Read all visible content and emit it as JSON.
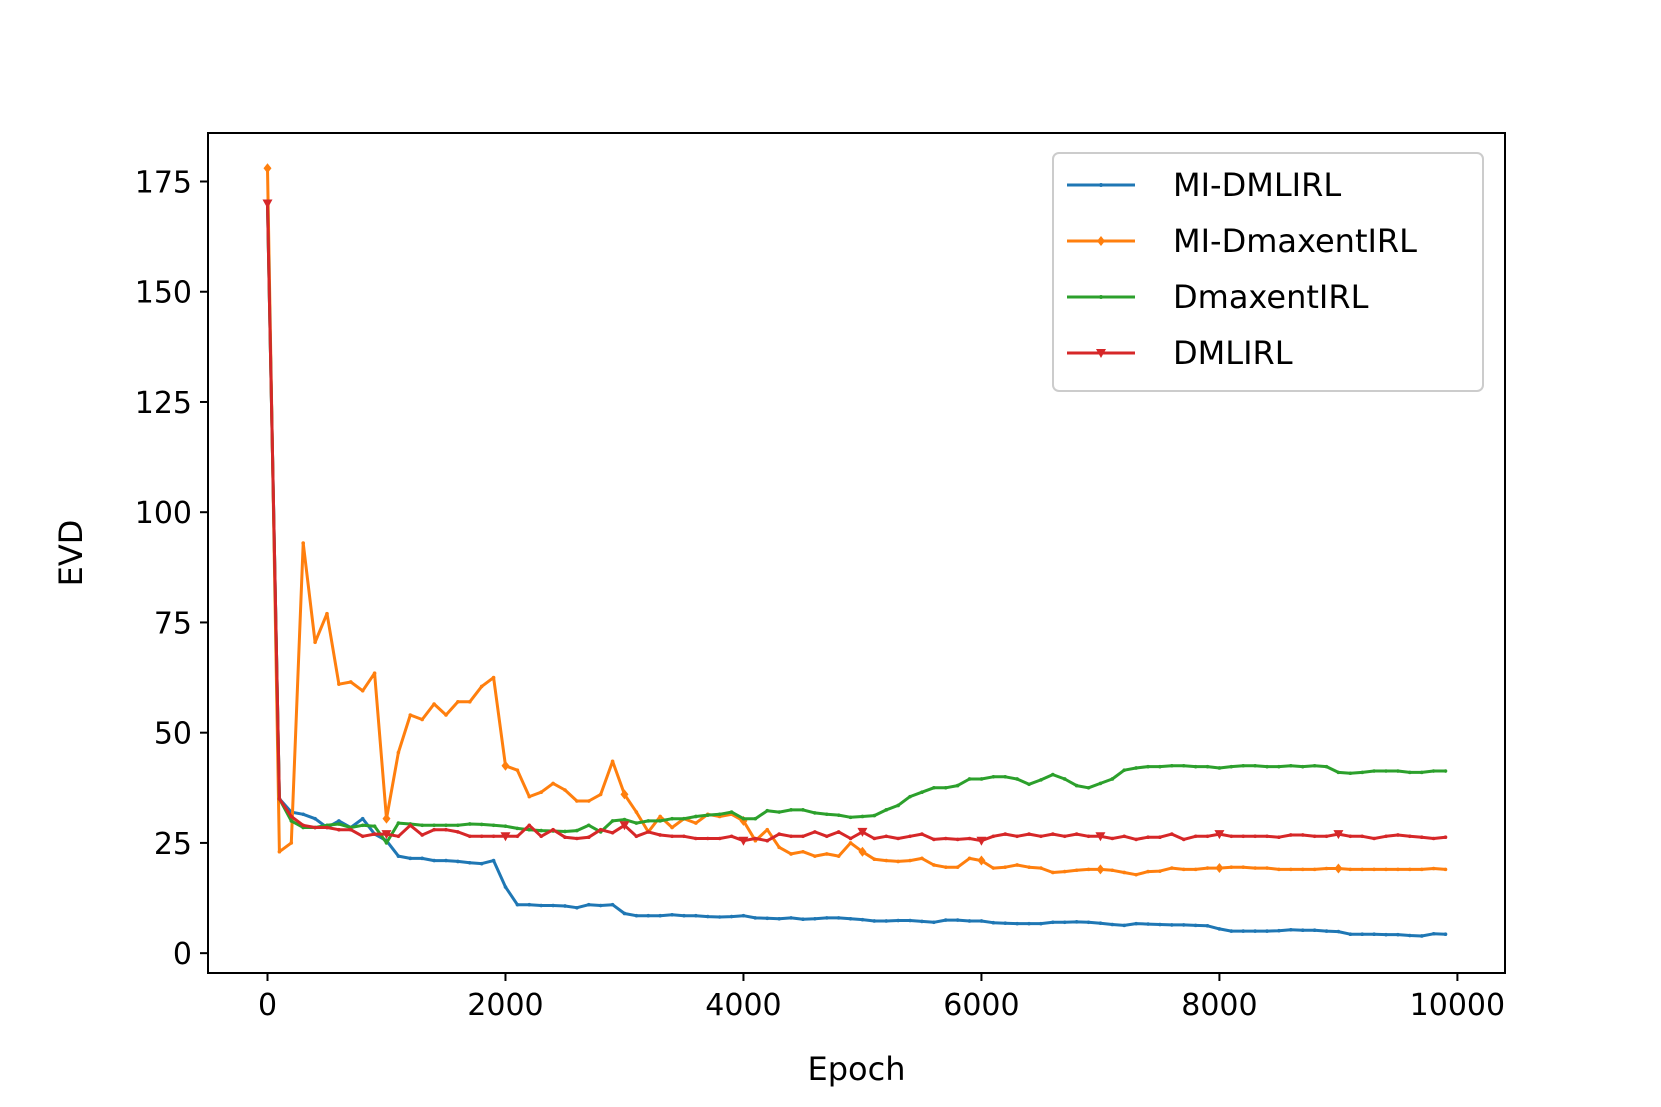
{
  "chart_data": {
    "type": "line",
    "title": "",
    "xlabel": "Epoch",
    "ylabel": "EVD",
    "xlim": [
      -500,
      10400
    ],
    "ylim": [
      -4.5,
      186
    ],
    "xticks": [
      0,
      2000,
      4000,
      6000,
      8000,
      10000
    ],
    "yticks": [
      0,
      25,
      50,
      75,
      100,
      125,
      150,
      175
    ],
    "legend_position": "upper-right",
    "grid": false,
    "x": [
      0,
      100,
      200,
      300,
      400,
      500,
      600,
      700,
      800,
      900,
      1000,
      1100,
      1200,
      1300,
      1400,
      1500,
      1600,
      1700,
      1800,
      1900,
      2000,
      2100,
      2200,
      2300,
      2400,
      2500,
      2600,
      2700,
      2800,
      2900,
      3000,
      3100,
      3200,
      3300,
      3400,
      3500,
      3600,
      3700,
      3800,
      3900,
      4000,
      4100,
      4200,
      4300,
      4400,
      4500,
      4600,
      4700,
      4800,
      4900,
      5000,
      5100,
      5200,
      5300,
      5400,
      5500,
      5600,
      5700,
      5800,
      5900,
      6000,
      6100,
      6200,
      6300,
      6400,
      6500,
      6600,
      6700,
      6800,
      6900,
      7000,
      7100,
      7200,
      7300,
      7400,
      7500,
      7600,
      7700,
      7800,
      7900,
      8000,
      8100,
      8200,
      8300,
      8400,
      8500,
      8600,
      8700,
      8800,
      8900,
      9000,
      9100,
      9200,
      9300,
      9400,
      9500,
      9600,
      9700,
      9800,
      9900
    ],
    "series": [
      {
        "name": "MI-DMLIRL",
        "color": "#1f77b4",
        "marker": "point",
        "values": [
          170,
          35,
          32,
          31.5,
          30.5,
          28.5,
          30,
          28.5,
          30.5,
          27,
          25.5,
          22,
          21.5,
          21.5,
          21,
          21,
          20.8,
          20.5,
          20.3,
          21,
          15,
          11,
          11,
          10.8,
          10.8,
          10.7,
          10.3,
          11,
          10.8,
          11,
          9,
          8.5,
          8.5,
          8.5,
          8.7,
          8.5,
          8.5,
          8.3,
          8.2,
          8.3,
          8.5,
          8,
          7.9,
          7.8,
          8,
          7.7,
          7.8,
          8,
          8,
          7.8,
          7.6,
          7.3,
          7.3,
          7.4,
          7.4,
          7.2,
          7,
          7.5,
          7.5,
          7.3,
          7.3,
          6.9,
          6.8,
          6.7,
          6.7,
          6.7,
          7,
          7,
          7.1,
          7,
          6.8,
          6.5,
          6.3,
          6.7,
          6.6,
          6.5,
          6.4,
          6.4,
          6.3,
          6.2,
          5.5,
          5,
          5,
          5,
          5,
          5.1,
          5.3,
          5.2,
          5.2,
          5,
          4.9,
          4.3,
          4.3,
          4.3,
          4.2,
          4.2,
          4,
          3.9,
          4.4,
          4.3
        ]
      },
      {
        "name": "MI-DmaxentIRL",
        "color": "#ff7f0e",
        "marker": "diamond",
        "values": [
          178,
          23,
          25,
          93,
          70.5,
          77,
          61,
          61.5,
          59.5,
          63.5,
          30.5,
          45.5,
          54,
          53,
          56.5,
          54,
          57,
          57,
          60.5,
          62.5,
          42.5,
          41.5,
          35.5,
          36.5,
          38.5,
          37,
          34.5,
          34.5,
          36,
          43.5,
          36,
          32,
          27.5,
          31,
          28.5,
          30.5,
          29.5,
          31.5,
          31,
          31.5,
          30,
          25.5,
          28,
          24,
          22.5,
          23,
          22,
          22.5,
          22,
          25,
          23,
          21.3,
          21,
          20.8,
          21,
          21.5,
          20,
          19.5,
          19.5,
          21.5,
          21,
          19.3,
          19.5,
          20,
          19.5,
          19.3,
          18.3,
          18.5,
          18.8,
          19,
          19,
          18.8,
          18.3,
          17.8,
          18.5,
          18.6,
          19.3,
          19,
          19,
          19.3,
          19.3,
          19.5,
          19.5,
          19.3,
          19.3,
          19,
          19,
          19,
          19,
          19.2,
          19.2,
          19,
          19,
          19,
          19,
          19,
          19,
          19,
          19.2,
          19
        ]
      },
      {
        "name": "DmaxentIRL",
        "color": "#2ca02c",
        "marker": "point",
        "values": [
          170,
          35,
          30,
          28.5,
          28.5,
          29,
          29.3,
          28.5,
          29,
          28.8,
          25,
          29.5,
          29.3,
          29,
          29,
          29,
          29,
          29.3,
          29.2,
          29,
          28.8,
          28.3,
          28,
          27.8,
          27.7,
          27.6,
          27.8,
          29,
          27.5,
          30,
          30.3,
          29.5,
          30,
          30,
          30.5,
          30.5,
          31,
          31.3,
          31.5,
          32,
          30.5,
          30.5,
          32.3,
          32,
          32.5,
          32.5,
          31.8,
          31.5,
          31.3,
          30.8,
          31,
          31.2,
          32.5,
          33.5,
          35.5,
          36.5,
          37.5,
          37.5,
          38,
          39.5,
          39.5,
          40,
          40,
          39.5,
          38.3,
          39.3,
          40.5,
          39.5,
          38,
          37.5,
          38.5,
          39.5,
          41.5,
          42,
          42.3,
          42.3,
          42.5,
          42.5,
          42.3,
          42.3,
          42,
          42.3,
          42.5,
          42.5,
          42.3,
          42.3,
          42.5,
          42.3,
          42.5,
          42.3,
          41,
          40.8,
          41,
          41.3,
          41.3,
          41.3,
          41,
          41,
          41.3,
          41.3
        ]
      },
      {
        "name": "DMLIRL",
        "color": "#d62728",
        "marker": "triangle-down",
        "values": [
          170,
          35,
          31,
          29,
          28.5,
          28.5,
          28,
          28,
          26.5,
          27,
          27,
          26.5,
          29,
          26.8,
          28,
          28,
          27.5,
          26.5,
          26.5,
          26.5,
          26.5,
          26.5,
          29,
          26.5,
          28,
          26.3,
          26,
          26.3,
          28,
          27.3,
          29,
          26.5,
          27.5,
          26.8,
          26.5,
          26.5,
          26,
          26,
          26,
          26.5,
          25.5,
          26,
          25.5,
          27,
          26.5,
          26.5,
          27.5,
          26.5,
          27.5,
          26,
          27.5,
          26,
          26.5,
          26,
          26.5,
          27,
          25.8,
          26,
          25.8,
          26,
          25.5,
          26.5,
          27,
          26.5,
          27,
          26.5,
          27,
          26.5,
          27,
          26.5,
          26.5,
          26,
          26.5,
          25.8,
          26.3,
          26.3,
          27,
          25.8,
          26.5,
          26.5,
          27,
          26.5,
          26.5,
          26.5,
          26.5,
          26.3,
          26.8,
          26.8,
          26.5,
          26.5,
          27,
          26.5,
          26.5,
          26,
          26.5,
          26.8,
          26.5,
          26.3,
          26,
          26.3
        ]
      }
    ]
  }
}
